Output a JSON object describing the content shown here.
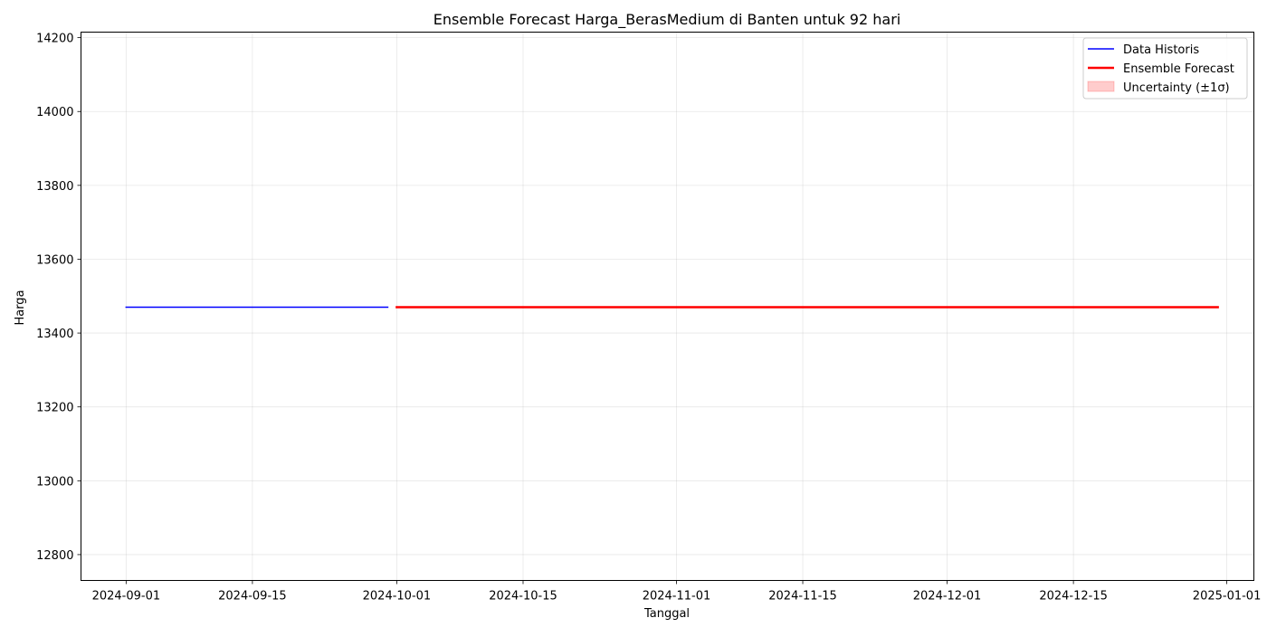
{
  "chart_data": {
    "type": "line",
    "title": "Ensemble Forecast Harga_BerasMedium di Banten untuk 92 hari",
    "xlabel": "Tanggal",
    "ylabel": "Harga",
    "x_axis_type": "date",
    "xlim": [
      "2024-08-27",
      "2025-01-04"
    ],
    "ylim": [
      12730,
      14215
    ],
    "x_ticks": [
      "2024-09-01",
      "2024-09-15",
      "2024-10-01",
      "2024-10-15",
      "2024-11-01",
      "2024-11-15",
      "2024-12-01",
      "2024-12-15",
      "2025-01-01"
    ],
    "y_ticks": [
      12800,
      13000,
      13200,
      13400,
      13600,
      13800,
      14000,
      14200
    ],
    "grid": true,
    "legend_position": "upper right",
    "series": [
      {
        "name": "Data Historis",
        "kind": "line",
        "color": "#0000ff",
        "x": [
          "2024-09-01",
          "2024-09-30"
        ],
        "y": [
          13470,
          13470
        ]
      },
      {
        "name": "Ensemble Forecast",
        "kind": "line",
        "color": "#ff0000",
        "x": [
          "2024-10-01",
          "2024-12-31"
        ],
        "y": [
          13470,
          13470
        ]
      },
      {
        "name": "Uncertainty (±1σ)",
        "kind": "band",
        "color": "#ff0000",
        "x": [
          "2024-10-01",
          "2024-12-31"
        ],
        "y_lower": [
          13470,
          13470
        ],
        "y_upper": [
          13470,
          13470
        ]
      }
    ]
  }
}
